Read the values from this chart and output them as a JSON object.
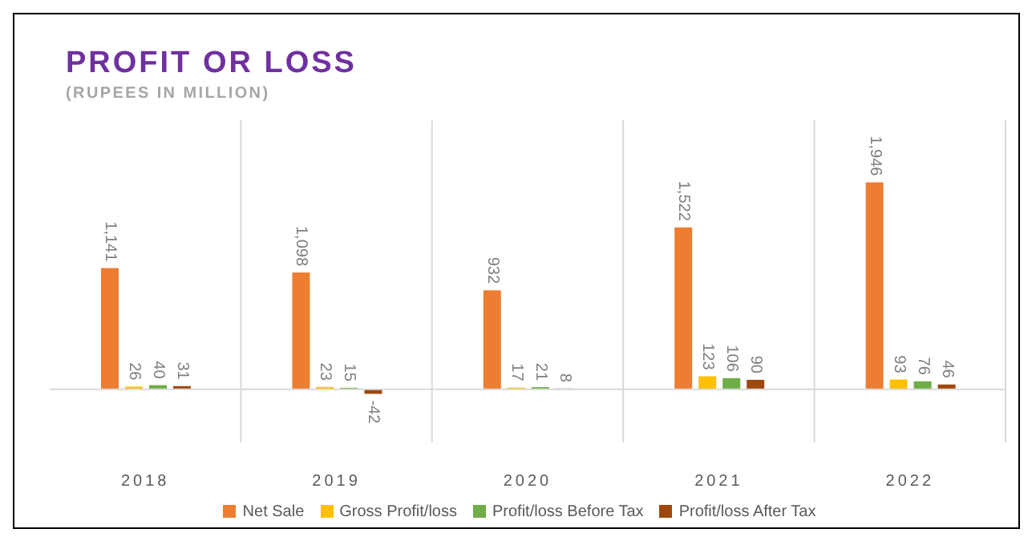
{
  "chart_data": {
    "type": "bar",
    "title": "PROFIT OR LOSS",
    "subtitle": "(RUPEES IN MILLION)",
    "categories": [
      "2018",
      "2019",
      "2020",
      "2021",
      "2022"
    ],
    "series": [
      {
        "name": "Net Sale",
        "color": "#ed7d31",
        "values": [
          1141,
          1098,
          932,
          1522,
          1946
        ],
        "value_labels": [
          "1,141",
          "1,098",
          "932",
          "1,522",
          "1,946"
        ]
      },
      {
        "name": "Gross Profit/loss",
        "color": "#ffc000",
        "values": [
          26,
          23,
          17,
          123,
          93
        ],
        "value_labels": [
          "26",
          "23",
          "17",
          "123",
          "93"
        ]
      },
      {
        "name": "Profit/loss Before Tax",
        "color": "#70ad47",
        "values": [
          40,
          15,
          21,
          106,
          76
        ],
        "value_labels": [
          "40",
          "15",
          "21",
          "106",
          "76"
        ]
      },
      {
        "name": "Profit/loss After Tax",
        "color": "#9e480e",
        "values": [
          31,
          -42,
          8,
          90,
          46
        ],
        "value_labels": [
          "31",
          "-42",
          "8",
          "90",
          "46"
        ]
      }
    ],
    "grid": "x",
    "legend": "bottom"
  }
}
